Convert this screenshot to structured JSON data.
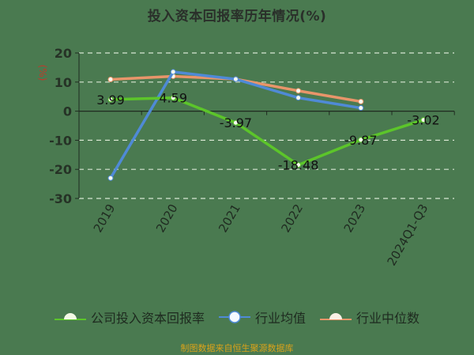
{
  "chart_data": {
    "type": "line",
    "title": "投入资本回报率历年情况(%)",
    "xlabel": "",
    "ylabel": "(%)",
    "ylim": [
      -30,
      20
    ],
    "yticks": [
      20,
      10,
      0,
      -10,
      -20,
      -30
    ],
    "grid": true,
    "legend_position": "bottom",
    "categories": [
      "2019",
      "2020",
      "2021",
      "2022",
      "2023",
      "2024Q1-Q3"
    ],
    "series": [
      {
        "name": "公司投入资本回报率",
        "color": "#5cc52a",
        "values": [
          3.99,
          4.59,
          -3.97,
          -18.48,
          -9.87,
          -3.02
        ],
        "labels": [
          "3.99",
          "4.59",
          "-3.97",
          "-18.48",
          "-9.87",
          "-3.02"
        ]
      },
      {
        "name": "行业均值",
        "color": "#4f8ad6",
        "values": [
          -23.0,
          13.5,
          11.0,
          4.6,
          1.1,
          null
        ]
      },
      {
        "name": "行业中位数",
        "color": "#e8956a",
        "values": [
          10.9,
          12.0,
          11.0,
          7.0,
          3.3,
          null
        ]
      }
    ]
  },
  "title": "投入资本回报率历年情况(%)",
  "y_unit": "(%)",
  "legend": [
    "公司投入资本回报率",
    "行业均值",
    "行业中位数"
  ],
  "footer": "制图数据来自恒生聚源数据库"
}
